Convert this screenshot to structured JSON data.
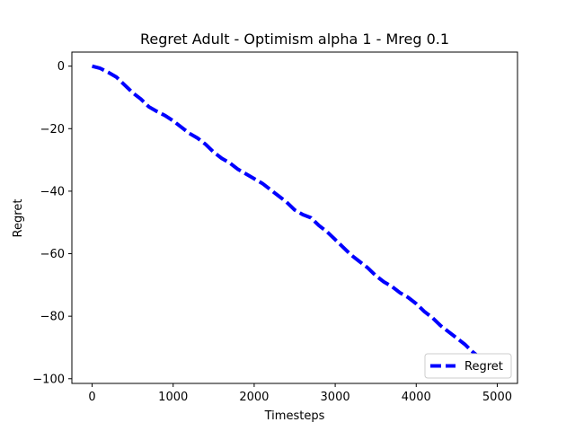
{
  "chart_data": {
    "type": "line",
    "title": "Regret Adult - Optimism alpha 1 - Mreg 0.1",
    "xlabel": "Timesteps",
    "ylabel": "Regret",
    "xlim": [
      -250,
      5250
    ],
    "ylim": [
      -101.5,
      4.5
    ],
    "xticks": [
      0,
      1000,
      2000,
      3000,
      4000,
      5000
    ],
    "xtick_labels": [
      "0",
      "1000",
      "2000",
      "3000",
      "4000",
      "5000"
    ],
    "yticks": [
      0,
      -20,
      -40,
      -60,
      -80,
      -100
    ],
    "ytick_labels": [
      "0",
      "−20",
      "−40",
      "−60",
      "−80",
      "−100"
    ],
    "grid": false,
    "legend_position": "lower right",
    "series": [
      {
        "name": "Regret",
        "color": "#0000ff",
        "line_style": "dashed",
        "x": [
          0,
          100,
          200,
          300,
          400,
          500,
          600,
          700,
          800,
          900,
          1000,
          1100,
          1200,
          1300,
          1400,
          1500,
          1600,
          1700,
          1800,
          1900,
          2000,
          2100,
          2200,
          2300,
          2400,
          2500,
          2600,
          2700,
          2800,
          2900,
          3000,
          3100,
          3200,
          3300,
          3400,
          3500,
          3600,
          3700,
          3800,
          3900,
          4000,
          4100,
          4200,
          4300,
          4400,
          4500,
          4600,
          4700,
          4800,
          4900,
          5000
        ],
        "y": [
          0,
          -0.7,
          -2,
          -3.5,
          -6,
          -8.5,
          -10.5,
          -13,
          -14.5,
          -15.8,
          -17.5,
          -19.5,
          -21.5,
          -23,
          -25,
          -27.5,
          -29.5,
          -31,
          -33,
          -34.5,
          -36,
          -37.5,
          -39.5,
          -41.5,
          -43.5,
          -46,
          -47.5,
          -48.5,
          -51,
          -53,
          -55.5,
          -58,
          -60.5,
          -62.5,
          -64.5,
          -67,
          -69,
          -70.5,
          -72.5,
          -74,
          -76,
          -78.5,
          -80.5,
          -83,
          -85,
          -87,
          -89,
          -91.5,
          -93.5,
          -95.5,
          -98
        ]
      }
    ]
  }
}
